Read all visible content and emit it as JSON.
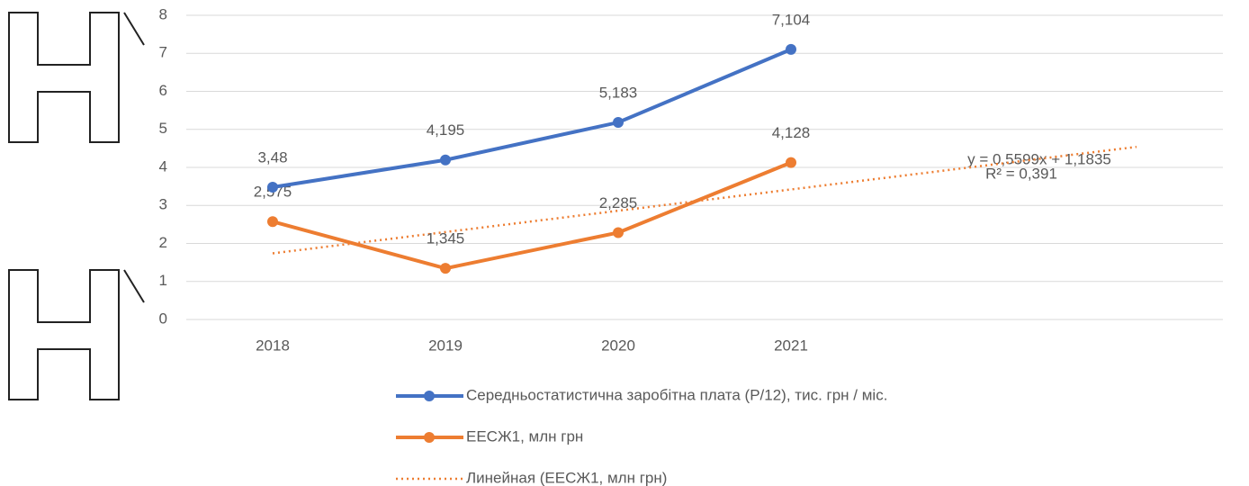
{
  "chart_data": {
    "type": "line",
    "categories": [
      "2018",
      "2019",
      "2020",
      "2021",
      null,
      null
    ],
    "series": [
      {
        "name": "Середньостатистична заробітна плата (Р/12), тис. грн / міс.",
        "color": "#4472c4",
        "values": [
          3.48,
          4.195,
          5.183,
          7.104,
          null,
          null
        ],
        "value_labels": [
          "3,48",
          "4,195",
          "5,183",
          "7,104",
          null,
          null
        ],
        "style": "solid"
      },
      {
        "name": "ЕЕСЖ1, млн грн",
        "color": "#ed7d31",
        "values": [
          2.575,
          1.345,
          2.285,
          4.128,
          null,
          null
        ],
        "value_labels": [
          "2,575",
          "1,345",
          "2,285",
          "4,128",
          null,
          null
        ],
        "style": "solid"
      },
      {
        "name": "Линейная (ЕЕСЖ1, млн грн)",
        "color": "#ed7d31",
        "values": [
          1.74,
          2.3,
          2.86,
          3.42,
          3.98,
          4.54
        ],
        "style": "dotted"
      }
    ],
    "annotations": [
      "y = 0,5599x + 1,1835",
      "R² = 0,391"
    ],
    "ylim": [
      0,
      8
    ],
    "yticks": [
      0,
      1,
      2,
      3,
      4,
      5,
      6,
      7,
      8
    ],
    "grid": true
  }
}
